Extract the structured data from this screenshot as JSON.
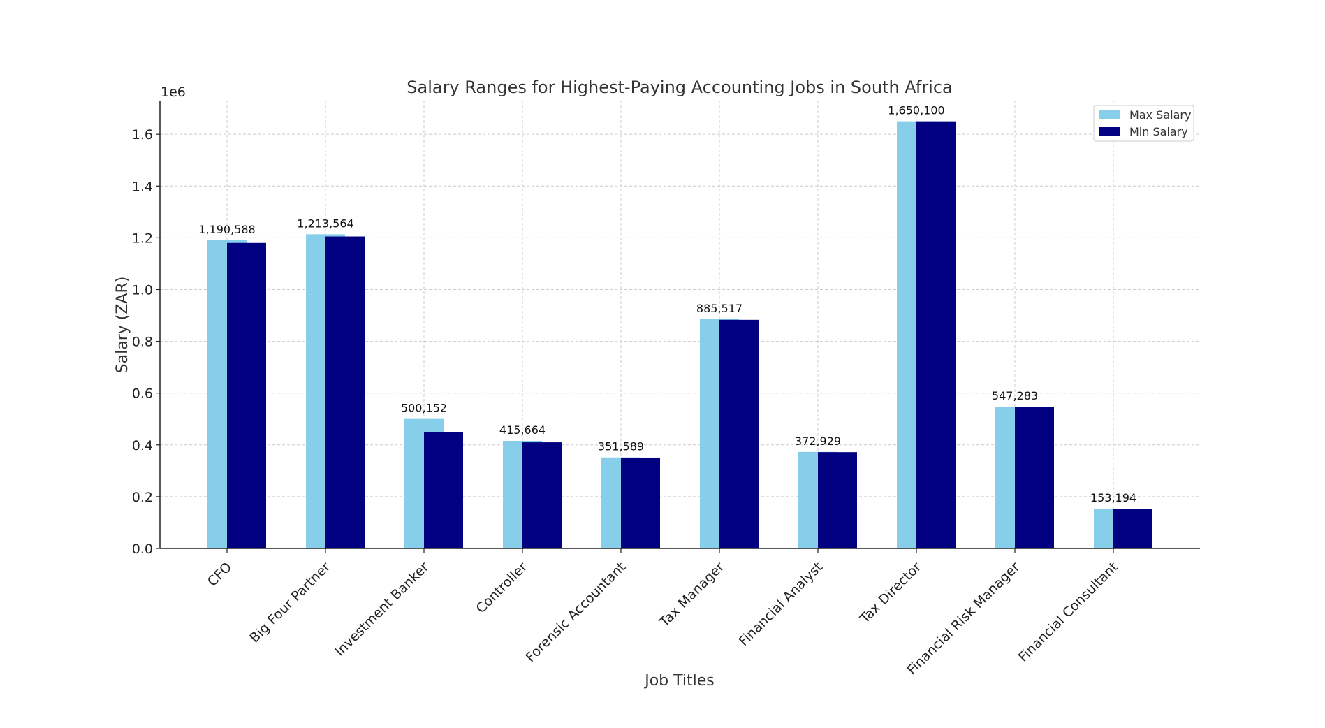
{
  "chart_data": {
    "type": "bar",
    "title": "Salary Ranges for Highest-Paying Accounting Jobs in South Africa",
    "xlabel": "Job Titles",
    "ylabel": "Salary (ZAR)",
    "offset_text": "1e6",
    "ylim": [
      0,
      1730000
    ],
    "yticks": [
      0,
      200000,
      400000,
      600000,
      800000,
      1000000,
      1200000,
      1400000,
      1600000
    ],
    "ytick_labels": [
      "0.0",
      "0.2",
      "0.4",
      "0.6",
      "0.8",
      "1.0",
      "1.2",
      "1.4",
      "1.6"
    ],
    "grid": true,
    "legend_position": "top-right",
    "categories": [
      "CFO",
      "Big Four Partner",
      "Investment Banker",
      "Controller",
      "Forensic Accountant",
      "Tax Manager",
      "Financial Analyst",
      "Tax Director",
      "Financial Risk Manager",
      "Financial Consultant"
    ],
    "series": [
      {
        "name": "Max Salary",
        "color": "#87ceeb",
        "values": [
          1190588,
          1213564,
          500152,
          415664,
          351589,
          885517,
          372929,
          1650100,
          547283,
          153194
        ],
        "labels": [
          "1,190,588",
          "1,213,564",
          "500,152",
          "415,664",
          "351,589",
          "885,517",
          "372,929",
          "1,650,100",
          "547,283",
          "153,194"
        ]
      },
      {
        "name": "Min Salary",
        "color": "#000080",
        "values": [
          1180000,
          1205000,
          450000,
          410000,
          351000,
          883000,
          372000,
          1650000,
          547000,
          153000
        ]
      }
    ]
  }
}
